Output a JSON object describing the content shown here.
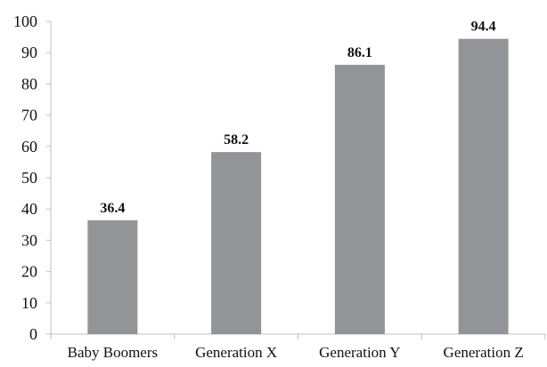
{
  "chart_data": {
    "type": "bar",
    "title": "",
    "xlabel": "",
    "ylabel": "",
    "categories": [
      "Baby Boomers",
      "Generation X",
      "Generation Y",
      "Generation Z"
    ],
    "values": [
      36.4,
      58.2,
      86.1,
      94.4
    ],
    "data_labels": [
      "36.4",
      "58.2",
      "86.1",
      "94.4"
    ],
    "ylim": [
      0,
      100
    ],
    "yticks": [
      0,
      10,
      20,
      30,
      40,
      50,
      60,
      70,
      80,
      90,
      100
    ],
    "ytick_labels": [
      "0",
      "10",
      "20",
      "30",
      "40",
      "50",
      "60",
      "70",
      "80",
      "90",
      "100"
    ],
    "grid": false,
    "legend": "none",
    "colors": {
      "bar": "#939498",
      "axis": "#bfbfbf",
      "text": "#111111"
    }
  }
}
